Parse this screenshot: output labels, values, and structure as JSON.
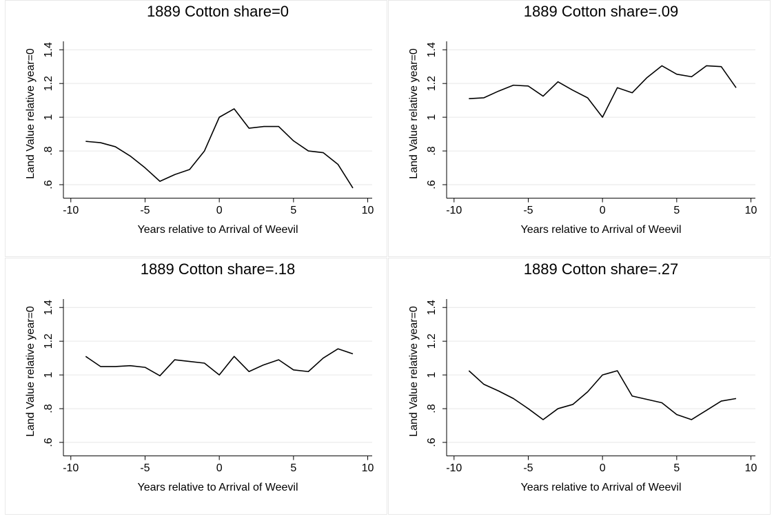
{
  "chart_data": [
    {
      "type": "line",
      "title": "1889 Cotton share=0",
      "xlabel": "Years relative to Arrival of Weevil",
      "ylabel": "Land Value relative year=0",
      "x": [
        -9,
        -8,
        -7,
        -6,
        -5,
        -4,
        -3,
        -2,
        -1,
        0,
        1,
        2,
        3,
        4,
        5,
        6,
        7,
        8,
        9
      ],
      "values": [
        0.857,
        0.849,
        0.825,
        0.77,
        0.7,
        0.62,
        0.66,
        0.69,
        0.8,
        1.0,
        1.05,
        0.935,
        0.945,
        0.945,
        0.86,
        0.8,
        0.79,
        0.72,
        0.58
      ],
      "color": "#000000",
      "grid": true,
      "xlim": [
        -10.5,
        10.3
      ],
      "xticks": [
        -10,
        -5,
        0,
        5,
        10
      ],
      "ylim": [
        0.52,
        1.45
      ],
      "yticks": [
        {
          "value": 0.6,
          "label": ".6"
        },
        {
          "value": 0.8,
          "label": ".8"
        },
        1,
        1.2,
        1.4
      ]
    },
    {
      "type": "line",
      "title": "1889 Cotton share=.09",
      "xlabel": "Years relative to Arrival of Weevil",
      "ylabel": "Land Value relative year=0",
      "x": [
        -9,
        -8,
        -7,
        -6,
        -5,
        -4,
        -3,
        -2,
        -1,
        0,
        1,
        2,
        3,
        4,
        5,
        6,
        7,
        8,
        9
      ],
      "values": [
        1.11,
        1.115,
        1.155,
        1.19,
        1.185,
        1.125,
        1.21,
        1.16,
        1.115,
        1.0,
        1.175,
        1.145,
        1.235,
        1.305,
        1.255,
        1.24,
        1.305,
        1.3,
        1.175
      ],
      "color": "#000000",
      "grid": true,
      "xlim": [
        -10.5,
        10.3
      ],
      "xticks": [
        -10,
        -5,
        0,
        5,
        10
      ],
      "ylim": [
        0.52,
        1.45
      ],
      "yticks": [
        {
          "value": 0.6,
          "label": ".6"
        },
        {
          "value": 0.8,
          "label": ".8"
        },
        1,
        1.2,
        1.4
      ]
    },
    {
      "type": "line",
      "title": "1889 Cotton share=.18",
      "xlabel": "Years relative to Arrival of Weevil",
      "ylabel": "Land Value relative year=0",
      "x": [
        -9,
        -8,
        -7,
        -6,
        -5,
        -4,
        -3,
        -2,
        -1,
        0,
        1,
        2,
        3,
        4,
        5,
        6,
        7,
        8,
        9
      ],
      "values": [
        1.11,
        1.05,
        1.05,
        1.055,
        1.045,
        0.995,
        1.09,
        1.08,
        1.07,
        1.0,
        1.11,
        1.02,
        1.06,
        1.09,
        1.03,
        1.02,
        1.1,
        1.155,
        1.125
      ],
      "color": "#000000",
      "grid": true,
      "xlim": [
        -10.5,
        10.3
      ],
      "xticks": [
        -10,
        -5,
        0,
        5,
        10
      ],
      "ylim": [
        0.52,
        1.45
      ],
      "yticks": [
        {
          "value": 0.6,
          "label": ".6"
        },
        {
          "value": 0.8,
          "label": ".8"
        },
        1,
        1.2,
        1.4
      ]
    },
    {
      "type": "line",
      "title": "1889 Cotton share=.27",
      "xlabel": "Years relative to Arrival of Weevil",
      "ylabel": "Land Value relative year=0",
      "x": [
        -9,
        -8,
        -7,
        -6,
        -5,
        -4,
        -3,
        -2,
        -1,
        0,
        1,
        2,
        3,
        4,
        5,
        6,
        7,
        8,
        9
      ],
      "values": [
        1.025,
        0.945,
        0.905,
        0.86,
        0.8,
        0.735,
        0.8,
        0.825,
        0.9,
        1.0,
        1.025,
        0.875,
        0.855,
        0.835,
        0.765,
        0.735,
        0.79,
        0.845,
        0.86
      ],
      "color": "#000000",
      "grid": true,
      "xlim": [
        -10.5,
        10.3
      ],
      "xticks": [
        -10,
        -5,
        0,
        5,
        10
      ],
      "ylim": [
        0.52,
        1.45
      ],
      "yticks": [
        {
          "value": 0.6,
          "label": ".6"
        },
        {
          "value": 0.8,
          "label": ".8"
        },
        1,
        1.2,
        1.4
      ]
    }
  ]
}
